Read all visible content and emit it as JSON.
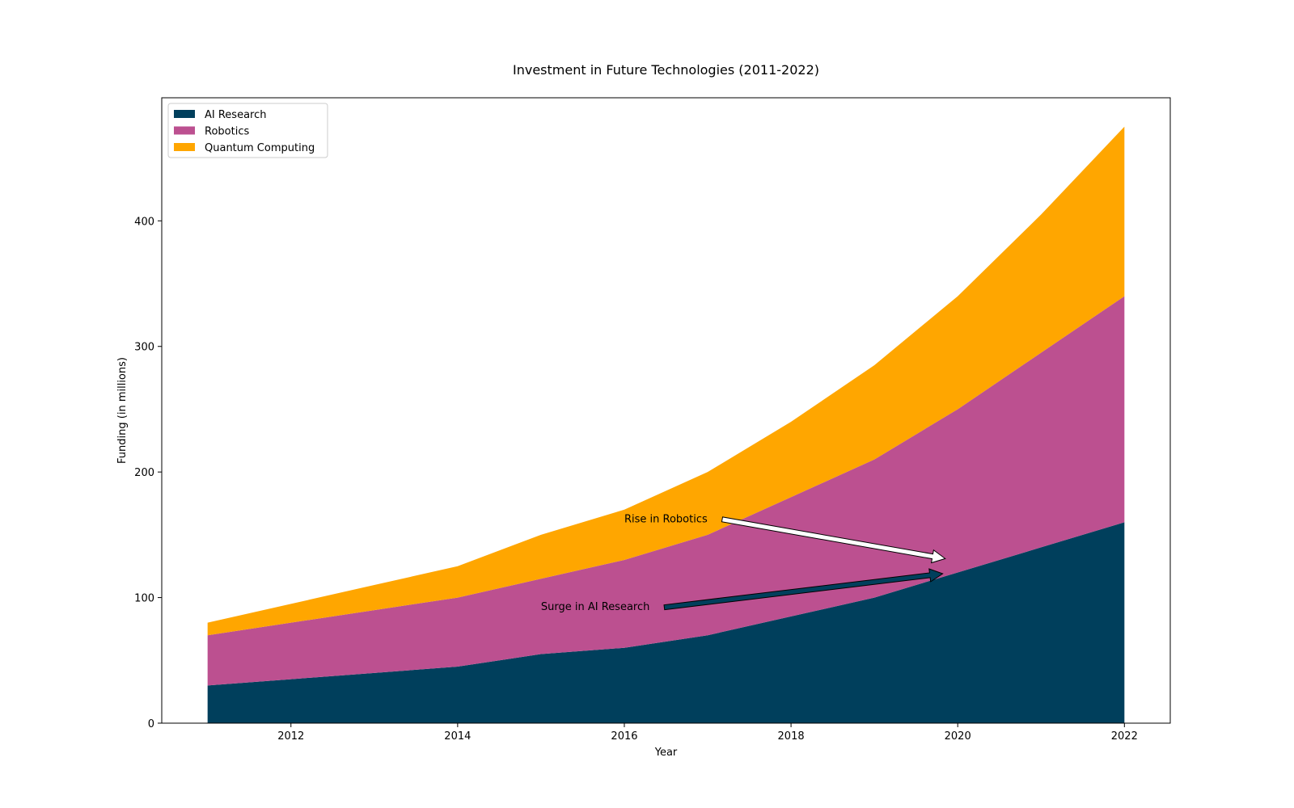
{
  "chart_data": {
    "type": "area",
    "stacked": true,
    "title": "Investment in Future Technologies (2011-2022)",
    "xlabel": "Year",
    "ylabel": "Funding (in millions)",
    "x": [
      2011,
      2012,
      2013,
      2014,
      2015,
      2016,
      2017,
      2018,
      2019,
      2020,
      2021,
      2022
    ],
    "xlim": [
      2010.45,
      2022.55
    ],
    "ylim": [
      0,
      498
    ],
    "xticks": [
      2012,
      2014,
      2016,
      2018,
      2020,
      2022
    ],
    "yticks": [
      0,
      100,
      200,
      300,
      400
    ],
    "grid": false,
    "legend_position": "top-left",
    "series": [
      {
        "name": "AI Research",
        "color": "#003f5c",
        "values": [
          30,
          35,
          40,
          45,
          55,
          60,
          70,
          85,
          100,
          120,
          140,
          160
        ]
      },
      {
        "name": "Robotics",
        "color": "#bc5090",
        "values": [
          40,
          45,
          50,
          55,
          60,
          70,
          80,
          95,
          110,
          130,
          155,
          180
        ]
      },
      {
        "name": "Quantum Computing",
        "color": "#ffa600",
        "values": [
          10,
          15,
          20,
          25,
          35,
          40,
          50,
          60,
          75,
          90,
          110,
          135
        ]
      }
    ],
    "annotations": [
      {
        "text": "Rise in Robotics",
        "text_x": 2016,
        "text_y": 160,
        "arrow_to_x": 2019.85,
        "arrow_to_y": 131,
        "arrow_color": "#ffffff",
        "arrow_edge": "#000000"
      },
      {
        "text": "Surge in AI Research",
        "text_x": 2015,
        "text_y": 90,
        "arrow_to_x": 2019.82,
        "arrow_to_y": 119,
        "arrow_color": "#003f5c",
        "arrow_edge": "#000000"
      }
    ]
  }
}
